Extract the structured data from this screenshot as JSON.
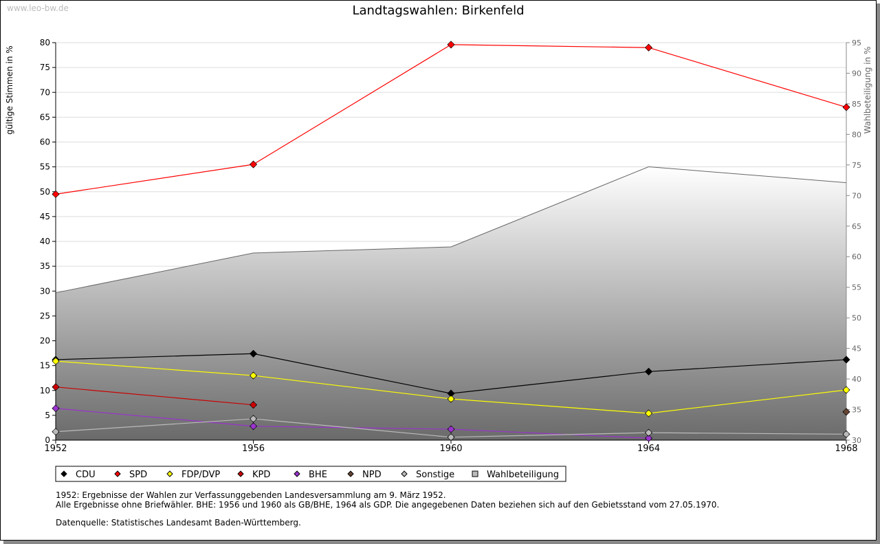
{
  "site": "www.leo-bw.de",
  "chart_data": {
    "type": "line",
    "title": "Landtagswahlen: Birkenfeld",
    "ylabel": "gültige Stimmen in %",
    "y2label": "Wahlbeteiligung in %",
    "x": [
      1952,
      1956,
      1960,
      1964,
      1968
    ],
    "xticks": [
      "1952",
      "1956",
      "1960",
      "1964",
      "1968"
    ],
    "ylim": [
      0,
      80
    ],
    "yticks": [
      "0",
      "5",
      "10",
      "15",
      "20",
      "25",
      "30",
      "35",
      "40",
      "45",
      "50",
      "55",
      "60",
      "65",
      "70",
      "75",
      "80"
    ],
    "y2lim": [
      30,
      95
    ],
    "y2ticks": [
      "30",
      "35",
      "40",
      "45",
      "50",
      "55",
      "60",
      "65",
      "70",
      "75",
      "80",
      "85",
      "90",
      "95"
    ],
    "grid": true,
    "series": [
      {
        "name": "CDU",
        "color": "#000000",
        "values": [
          16.2,
          17.4,
          9.4,
          13.8,
          16.2
        ]
      },
      {
        "name": "SPD",
        "color": "#ff0000",
        "values": [
          49.5,
          55.5,
          79.6,
          79.0,
          67.0
        ]
      },
      {
        "name": "FDP/DVP",
        "color": "#ffff00",
        "values": [
          15.9,
          13.0,
          8.3,
          5.4,
          10.1
        ]
      },
      {
        "name": "KPD",
        "color": "#cc0000",
        "values": [
          10.7,
          7.1,
          null,
          null,
          null
        ]
      },
      {
        "name": "BHE",
        "color": "#9933cc",
        "values": [
          6.4,
          2.8,
          2.2,
          0.4,
          null
        ]
      },
      {
        "name": "NPD",
        "color": "#664433",
        "values": [
          null,
          null,
          null,
          null,
          5.7
        ]
      },
      {
        "name": "Sonstige",
        "color": "#bbbbbb",
        "values": [
          1.7,
          4.3,
          0.6,
          1.5,
          1.2
        ]
      }
    ],
    "area": {
      "name": "Wahlbeteiligung",
      "axis": "right",
      "values": [
        54.1,
        60.6,
        61.6,
        74.7,
        72.1
      ]
    },
    "legend": "bottom-left"
  },
  "notes": [
    "1952: Ergebnisse der Wahlen zur Verfassunggebenden Landesversammlung am 9. März 1952.",
    "Alle Ergebnisse ohne Briefwähler. BHE: 1956 und 1960 als GB/BHE, 1964 als GDP. Die angegebenen Daten beziehen sich auf den Gebietsstand vom 27.05.1970.",
    "Datenquelle: Statistisches Landesamt Baden-Württemberg."
  ]
}
